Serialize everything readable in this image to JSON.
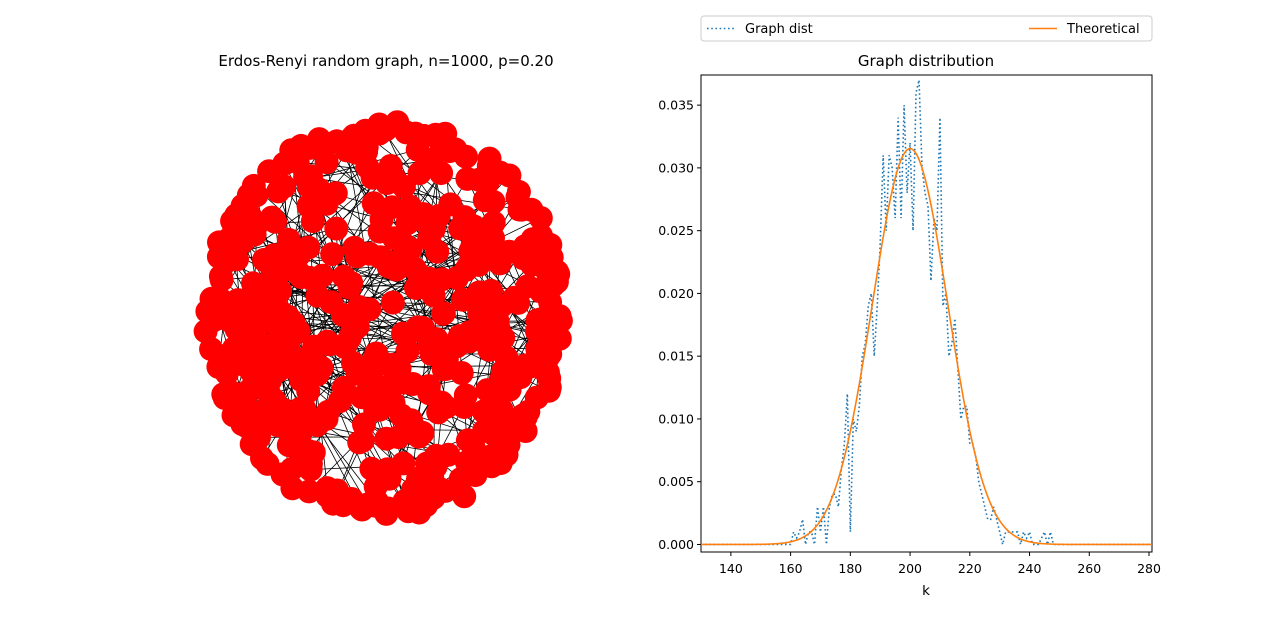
{
  "chart_data": [
    {
      "type": "network",
      "title": "Erdos-Renyi random graph, n=1000, p=0.20",
      "node_color": "#ff0000",
      "edge_color": "#000000",
      "axes_visible": false
    },
    {
      "type": "line",
      "title": "Graph distribution",
      "xlabel": "k",
      "ylabel": "",
      "xlim": [
        130,
        281
      ],
      "ylim": [
        -0.0006,
        0.0374
      ],
      "xticks": [
        140,
        160,
        180,
        200,
        220,
        240,
        260,
        280
      ],
      "yticks": [
        0.0,
        0.005,
        0.01,
        0.015,
        0.02,
        0.025,
        0.03,
        0.035
      ],
      "ytick_labels": [
        "0.000",
        "0.005",
        "0.010",
        "0.015",
        "0.020",
        "0.025",
        "0.030",
        "0.035"
      ],
      "legend_position": "above-plot",
      "series": [
        {
          "name": "Graph dist",
          "style": "dotted",
          "color": "#1f77b4",
          "x": [
            130,
            160,
            161,
            162,
            163,
            164,
            165,
            166,
            167,
            168,
            169,
            170,
            171,
            172,
            173,
            174,
            175,
            176,
            177,
            178,
            179,
            180,
            181,
            182,
            183,
            184,
            185,
            186,
            187,
            188,
            189,
            190,
            191,
            192,
            193,
            194,
            195,
            196,
            197,
            198,
            199,
            200,
            201,
            202,
            203,
            204,
            205,
            206,
            207,
            208,
            209,
            210,
            211,
            212,
            213,
            214,
            215,
            216,
            217,
            218,
            219,
            220,
            221,
            222,
            223,
            224,
            225,
            226,
            227,
            228,
            229,
            230,
            231,
            232,
            233,
            234,
            235,
            236,
            237,
            238,
            239,
            240,
            241,
            242,
            243,
            244,
            245,
            246,
            247,
            248,
            281
          ],
          "y": [
            0,
            0,
            0.001,
            0.0005,
            0.001,
            0.002,
            0,
            0.001,
            0.001,
            0,
            0.003,
            0.001,
            0.003,
            0,
            0.003,
            0.004,
            0.004,
            0.003,
            0.006,
            0.008,
            0.012,
            0.001,
            0.01,
            0.009,
            0.011,
            0.015,
            0.016,
            0.019,
            0.02,
            0.015,
            0.019,
            0.024,
            0.031,
            0.025,
            0.031,
            0.03,
            0.026,
            0.034,
            0.026,
            0.035,
            0.028,
            0.032,
            0.025,
            0.036,
            0.037,
            0.03,
            0.028,
            0.027,
            0.021,
            0.026,
            0.025,
            0.034,
            0.019,
            0.02,
            0.015,
            0.016,
            0.018,
            0.014,
            0.01,
            0.011,
            0.011,
            0.008,
            0.008,
            0.007,
            0.005,
            0.004,
            0.003,
            0.002,
            0.002,
            0.003,
            0.002,
            0.001,
            0,
            0.001,
            0.001,
            0.001,
            0.001,
            0.001,
            0,
            0.001,
            0.0005,
            0.001,
            0,
            0,
            0,
            0.0005,
            0.001,
            0,
            0.001,
            0,
            0
          ]
        },
        {
          "name": "Theoretical",
          "style": "solid",
          "color": "#ff7f0e",
          "distribution": "normal",
          "mean": 200,
          "sd": 12.65
        }
      ]
    }
  ]
}
